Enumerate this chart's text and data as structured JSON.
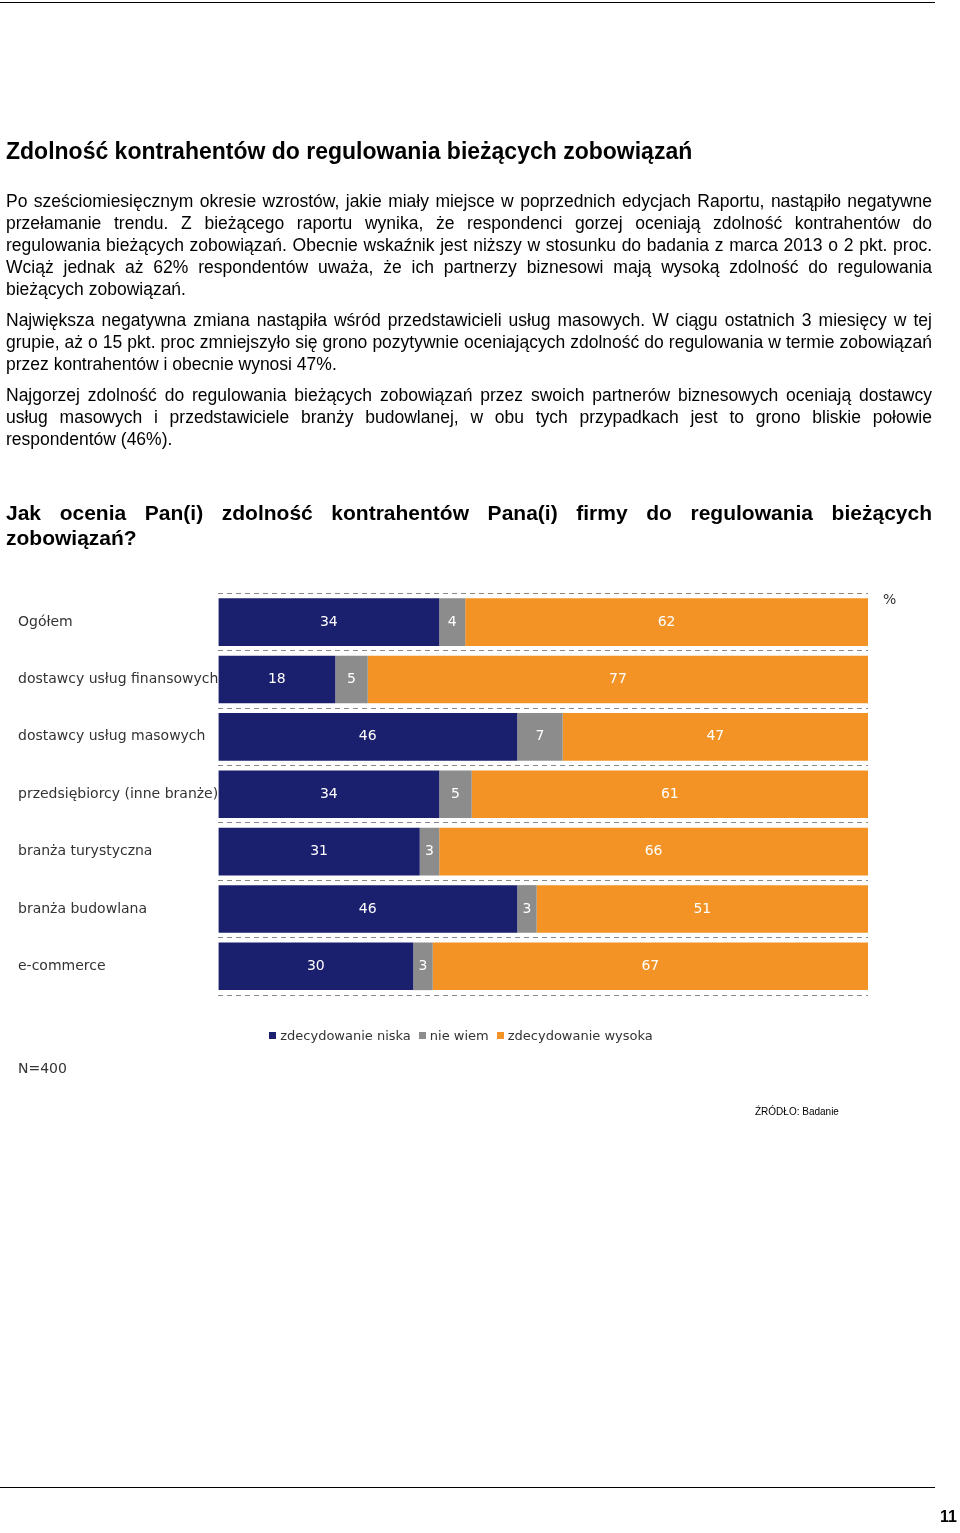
{
  "chart_data": {
    "type": "bar",
    "orientation": "horizontal",
    "title": "Zdolność kontrahentów do regulowania bieżących zobowiązań",
    "subtitle": "Jak ocenia Pan(i) zdolność kontrahentów Pana(i) firmy do regulowania bieżących zobowiązań?",
    "categories": [
      "Ogółem",
      "dostawcy usług finansowych",
      "dostawcy usług masowych",
      "przedsiębiorcy (inne branże)",
      "branża turystyczna",
      "branża budowlana",
      "e-commerce"
    ],
    "series": [
      {
        "name": "zdecydowanie niska",
        "color": "#1a1f6e",
        "values": [
          34,
          18,
          46,
          34,
          31,
          46,
          30
        ]
      },
      {
        "name": "nie wiem",
        "color": "#8c8c8c",
        "values": [
          4,
          5,
          7,
          5,
          3,
          3,
          3
        ]
      },
      {
        "name": "zdecydowanie wysoka",
        "color": "#f39325",
        "values": [
          62,
          77,
          47,
          61,
          66,
          51,
          67
        ]
      }
    ],
    "stacked": true,
    "xlim": [
      0,
      100
    ],
    "tick_labels": "y",
    "grid": "y",
    "line_style": "dashed",
    "legend": "bottom",
    "data_labels": true,
    "annotations": [
      "Po sześciomiesięcznym okresie wzrostów, jakie miały miejsce w poprzednich edycjach Raportu, nastąpiło negatywne przełamanie trendu. Z bieżącego raportu wynika, że respondenci gorzej oceniają zdolność kontrahentów do regulowania bieżących zobowiązań. Obecnie wskaźnik jest niższy w stosunku do badania z marca 2013 o 2 pkt. proc. Wciąż jednak aż 62% respondentów uważa, że ich partnerzy biznesowi mają wysoką zdolność do regulowania bieżących zobowiązań.",
      "Największa negatywna zmiana nastąpiła wśród przedstawicieli usług masowych. W ciągu ostatnich 3 miesięcy w tej grupie, aż o 15 pkt. proc zmniejszyło się grono pozytywnie oceniających zdolność do regulowania w termie zobowiązań przez kontrahentów i obecnie wynosi 47%.",
      "Najgorzej zdolność do regulowania bieżących zobowiązań przez swoich partnerów biznesowych oceniają dostawcy usług masowych i przedstawiciele branży budowlanej,  w obu tych przypadkach jest to grono bliskie połowie respondentów (46%).",
      "%",
      "N=400",
      "ŹRÓDŁO: Badanie",
      "11"
    ]
  }
}
